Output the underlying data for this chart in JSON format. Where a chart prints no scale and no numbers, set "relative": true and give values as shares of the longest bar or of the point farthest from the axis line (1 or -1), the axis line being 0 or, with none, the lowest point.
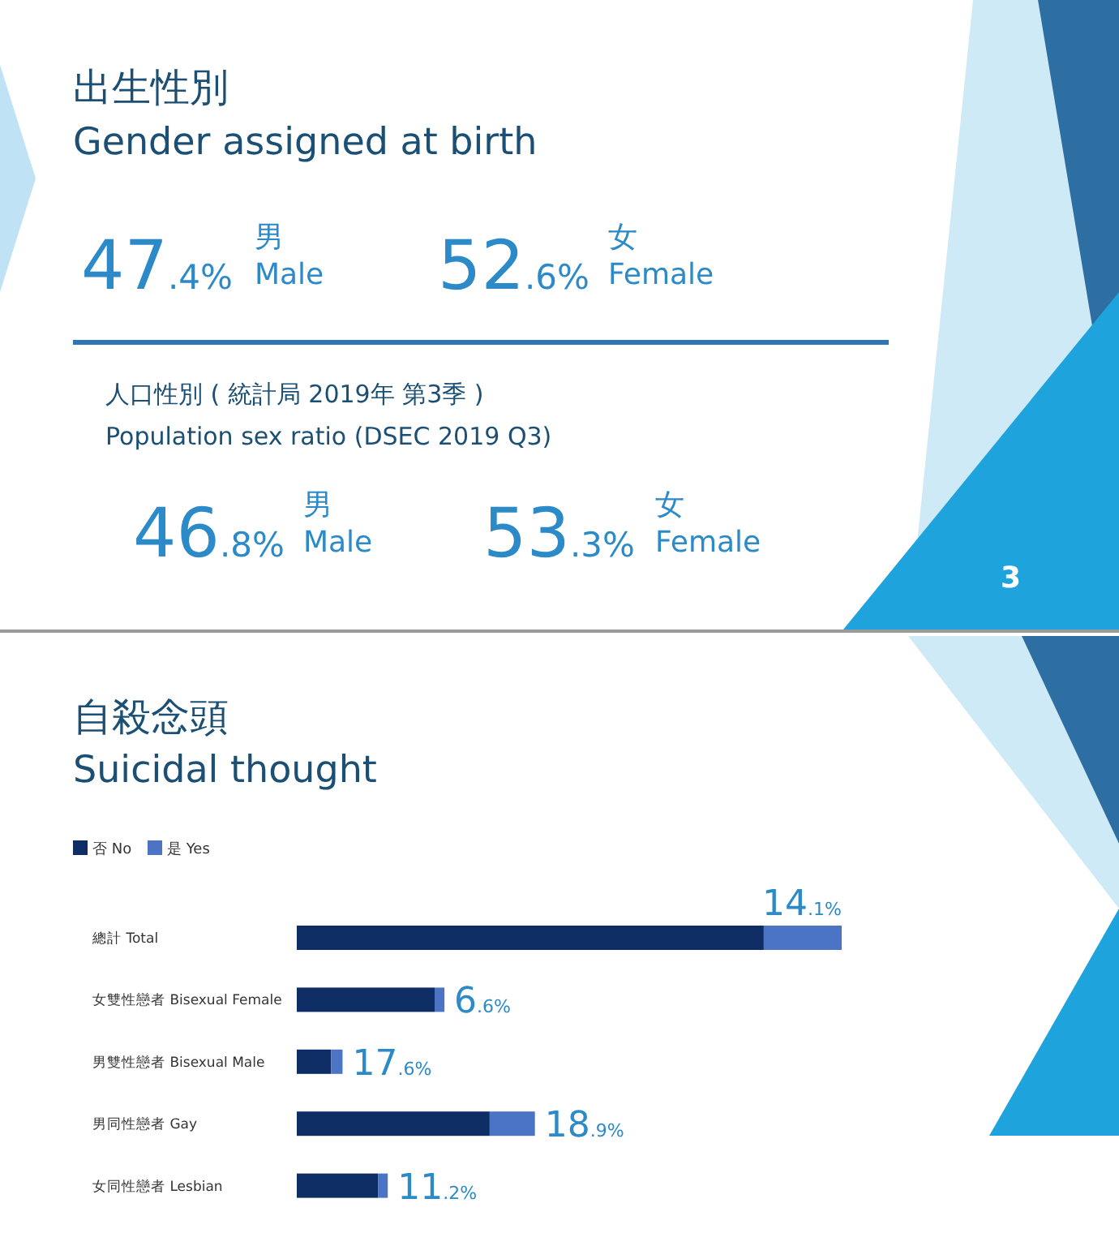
{
  "chart_data": [
    {
      "type": "other",
      "title": "出生性別",
      "subtitle": "Gender assigned at birth",
      "annotations": [
        "47.4%",
        "男",
        "Male",
        "52.6%",
        "女",
        "Female",
        "人口性別 ( 統計局 2019年 第3季 )",
        "Population sex ratio (DSEC 2019 Q3)",
        "46.8%",
        "男",
        "Male",
        "53.3%",
        "女",
        "Female",
        "3"
      ]
    },
    {
      "type": "bar",
      "title": "自殺念頭",
      "subtitle": "Suicidal thought",
      "orientation": "horizontal",
      "stacked": true,
      "relative": true,
      "legend": "top left",
      "categories": [
        "總計 Total",
        "女雙性戀者 Bisexual Female",
        "男雙性戀者 Bisexual Male",
        "男同性戀者 Gay",
        "女同性戀者 Lesbian"
      ],
      "series": [
        {
          "name": "否 No",
          "color": "#0e2d64",
          "values": [
            0.857,
            0.253,
            0.063,
            0.354,
            0.149
          ]
        },
        {
          "name": "是 Yes",
          "color": "#4b74c4",
          "values": [
            0.143,
            0.018,
            0.021,
            0.083,
            0.018
          ]
        }
      ],
      "annotations": [
        "14.1%",
        "6.6%",
        "17.6%",
        "18.9%",
        "11.2%"
      ]
    }
  ]
}
